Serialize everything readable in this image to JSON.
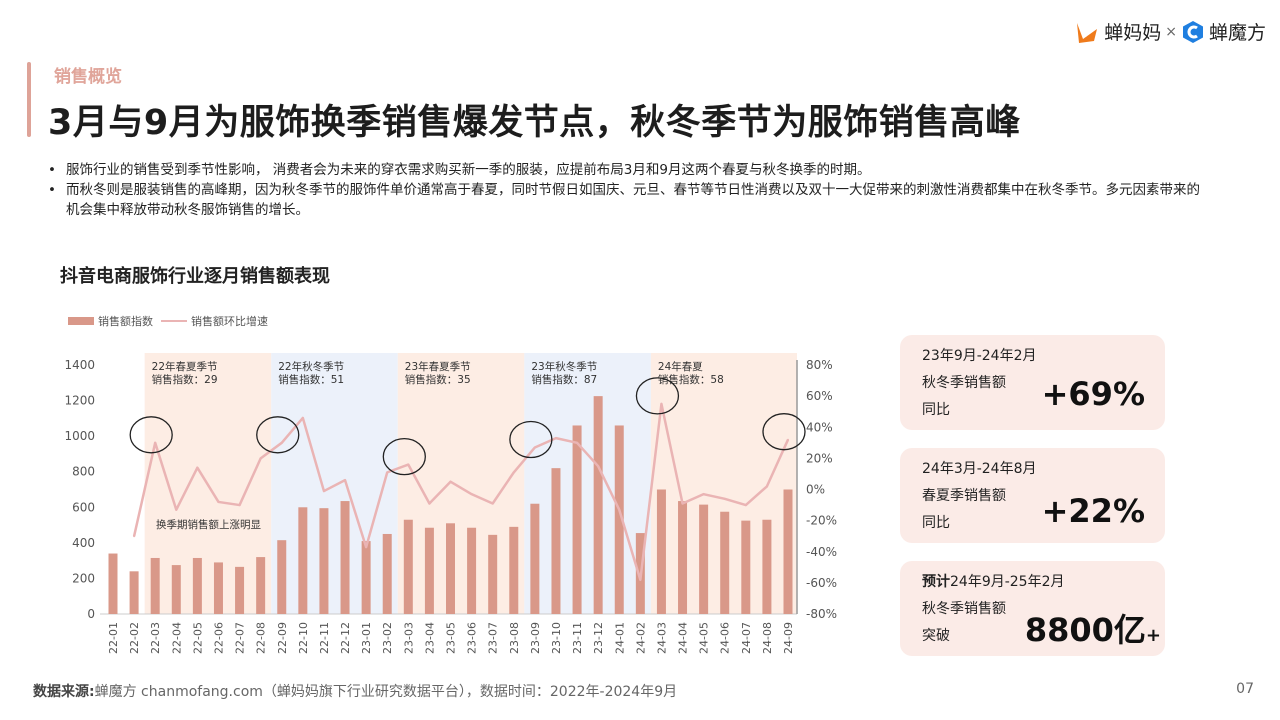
{
  "header": {
    "section": "销售概览",
    "title": "3月与9月为服饰换季销售爆发节点，秋冬季节为服饰销售高峰",
    "logo_left": "蝉妈妈",
    "logo_sep": "×",
    "logo_right": "蝉魔方"
  },
  "bullets": [
    "服饰行业的销售受到季节性影响， 消费者会为未来的穿衣需求购买新一季的服装，应提前布局3月和9月这两个春夏与秋冬换季的时期。",
    "而秋冬则是服装销售的高峰期，因为秋冬季节的服饰件单价通常高于春夏，同时节假日如国庆、元旦、春节等节日性消费以及双十一大促带来的刺激性消费都集中在秋冬季节。多元因素带来的机会集中释放带动秋冬服饰销售的增长。"
  ],
  "chart_data": {
    "type": "bar+line",
    "title": "抖音电商服饰行业逐月销售额表现",
    "legend_position": "top-left",
    "categories": [
      "22-01",
      "22-02",
      "22-03",
      "22-04",
      "22-05",
      "22-06",
      "22-07",
      "22-08",
      "22-09",
      "22-10",
      "22-11",
      "22-12",
      "23-01",
      "23-02",
      "23-03",
      "23-04",
      "23-05",
      "23-06",
      "23-07",
      "23-08",
      "23-09",
      "23-10",
      "23-11",
      "23-12",
      "24-01",
      "24-02",
      "24-03",
      "24-04",
      "24-05",
      "24-06",
      "24-07",
      "24-08",
      "24-09"
    ],
    "series": [
      {
        "name": "销售额指数",
        "type": "bar",
        "axis": "left",
        "color": "#d99889",
        "values": [
          340,
          240,
          315,
          275,
          315,
          290,
          265,
          320,
          415,
          600,
          595,
          635,
          410,
          450,
          530,
          485,
          510,
          485,
          445,
          490,
          620,
          820,
          1060,
          1225,
          1060,
          455,
          700,
          635,
          615,
          575,
          525,
          530,
          700
        ]
      },
      {
        "name": "销售额环比增速",
        "type": "line",
        "axis": "right",
        "color": "#eab4b4",
        "unit": "%",
        "values": [
          null,
          -30,
          30,
          -13,
          14,
          -8,
          -10,
          20,
          30,
          46,
          -1,
          6,
          -37,
          11,
          16,
          -9,
          5,
          -3,
          -9,
          11,
          27,
          33,
          30,
          15,
          -13,
          -58,
          55,
          -9,
          -3,
          -6,
          -10,
          2,
          32
        ]
      }
    ],
    "y_left": {
      "range": [
        0,
        1400
      ],
      "ticks": [
        "0",
        "200",
        "400",
        "600",
        "800",
        "1000",
        "1200",
        "1400"
      ]
    },
    "y_right": {
      "range": [
        -80,
        80
      ],
      "ticks": [
        "-80%",
        "-60%",
        "-40%",
        "-20%",
        "0%",
        "20%",
        "40%",
        "60%",
        "80%"
      ]
    },
    "grid": false,
    "seasons": [
      {
        "label": "22年春夏季节",
        "index_text": "销售指数：29",
        "from": "22-03",
        "to": "22-08",
        "color": "#fdeadf"
      },
      {
        "label": "22年秋冬季节",
        "index_text": "销售指数：51",
        "from": "22-09",
        "to": "23-02",
        "color": "#e9eff9"
      },
      {
        "label": "23年春夏季节",
        "index_text": "销售指数：35",
        "from": "23-03",
        "to": "23-08",
        "color": "#fdeadf"
      },
      {
        "label": "23年秋冬季节",
        "index_text": "销售指数：87",
        "from": "23-09",
        "to": "24-02",
        "color": "#e9eff9"
      },
      {
        "label": "24年春夏",
        "index_text": "销售指数：58",
        "from": "24-03",
        "to": "24-09",
        "color": "#fdeadf"
      }
    ],
    "highlighted": [
      "22-03",
      "22-09",
      "23-03",
      "23-09",
      "24-03",
      "24-09"
    ],
    "annotation": "换季期销售额上涨明显"
  },
  "cards": [
    {
      "line1": "23年9月-24年2月",
      "line2": "秋冬季销售额",
      "line3": "同比",
      "value": "+69%"
    },
    {
      "line1": "24年3月-24年8月",
      "line2": "春夏季销售额",
      "line3": "同比",
      "value": "+22%"
    },
    {
      "prefix": "预计",
      "line1": "24年9月-25年2月",
      "line2": "秋冬季销售额",
      "line3": "突破",
      "value": "8800亿",
      "suffix": "+"
    }
  ],
  "footer": {
    "label": "数据来源:",
    "text": "蝉魔方 chanmofang.com（蝉妈妈旗下行业研究数据平台），数据时间：2022年-2024年9月",
    "page": "07"
  }
}
